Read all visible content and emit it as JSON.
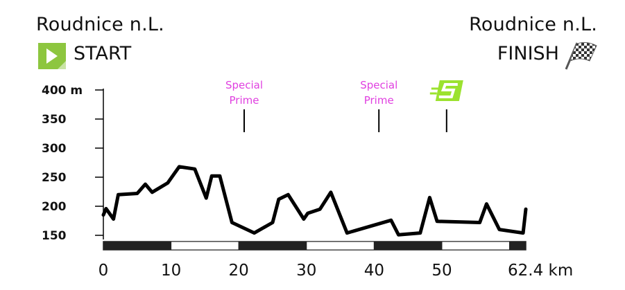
{
  "start": {
    "place": "Roudnice n.L.",
    "label": "START",
    "icon": "play-icon",
    "icon_color": "#8dc63f"
  },
  "finish": {
    "place": "Roudnice n.L.",
    "label": "FINISH",
    "icon": "checkered-flag-icon"
  },
  "chart_data": {
    "type": "line",
    "title": "",
    "xlabel": "",
    "ylabel": "",
    "x_unit": "km",
    "y_unit": "m",
    "xlim": [
      0,
      62.4
    ],
    "ylim": [
      150,
      400
    ],
    "x_ticks": [
      "0",
      "10",
      "20",
      "30",
      "40",
      "50",
      "62.4 km"
    ],
    "x_tick_values": [
      0,
      10,
      20,
      30,
      40,
      50,
      62.4
    ],
    "y_ticks": [
      "150",
      "200",
      "250",
      "300",
      "350",
      "400 m"
    ],
    "y_tick_values": [
      150,
      200,
      250,
      300,
      350,
      400
    ],
    "series": [
      {
        "x": [
          0,
          0.4,
          1.5,
          2.2,
          5.0,
          6.2,
          7.2,
          9.5,
          11.2,
          13.5,
          15.2,
          16.0,
          17.2,
          19.0,
          22.3,
          25.0,
          25.9,
          27.3,
          29.6,
          30.2,
          32.0,
          33.6,
          36.0,
          42.5,
          43.6,
          46.8,
          48.2,
          49.3,
          55.6,
          56.6,
          58.5,
          62.0,
          62.4
        ],
        "y": [
          185,
          196,
          178,
          220,
          222,
          238,
          224,
          240,
          268,
          264,
          214,
          252,
          252,
          172,
          154,
          172,
          212,
          220,
          178,
          188,
          195,
          224,
          154,
          176,
          151,
          154,
          215,
          174,
          172,
          204,
          160,
          154,
          195
        ]
      }
    ],
    "annotations": [
      {
        "x": 20.8,
        "text_lines": [
          "Special",
          "Prime"
        ],
        "color": "#e040e0"
      },
      {
        "x": 40.7,
        "text_lines": [
          "Special",
          "Prime"
        ],
        "color": "#e040e0"
      },
      {
        "x": 50.7,
        "icon": "sprint-s-icon",
        "color": "#9be22f"
      }
    ],
    "distance_bar": {
      "segment_km": 10,
      "colors": [
        "#222222",
        "#ffffff"
      ]
    },
    "grid": false,
    "legend": "none"
  }
}
